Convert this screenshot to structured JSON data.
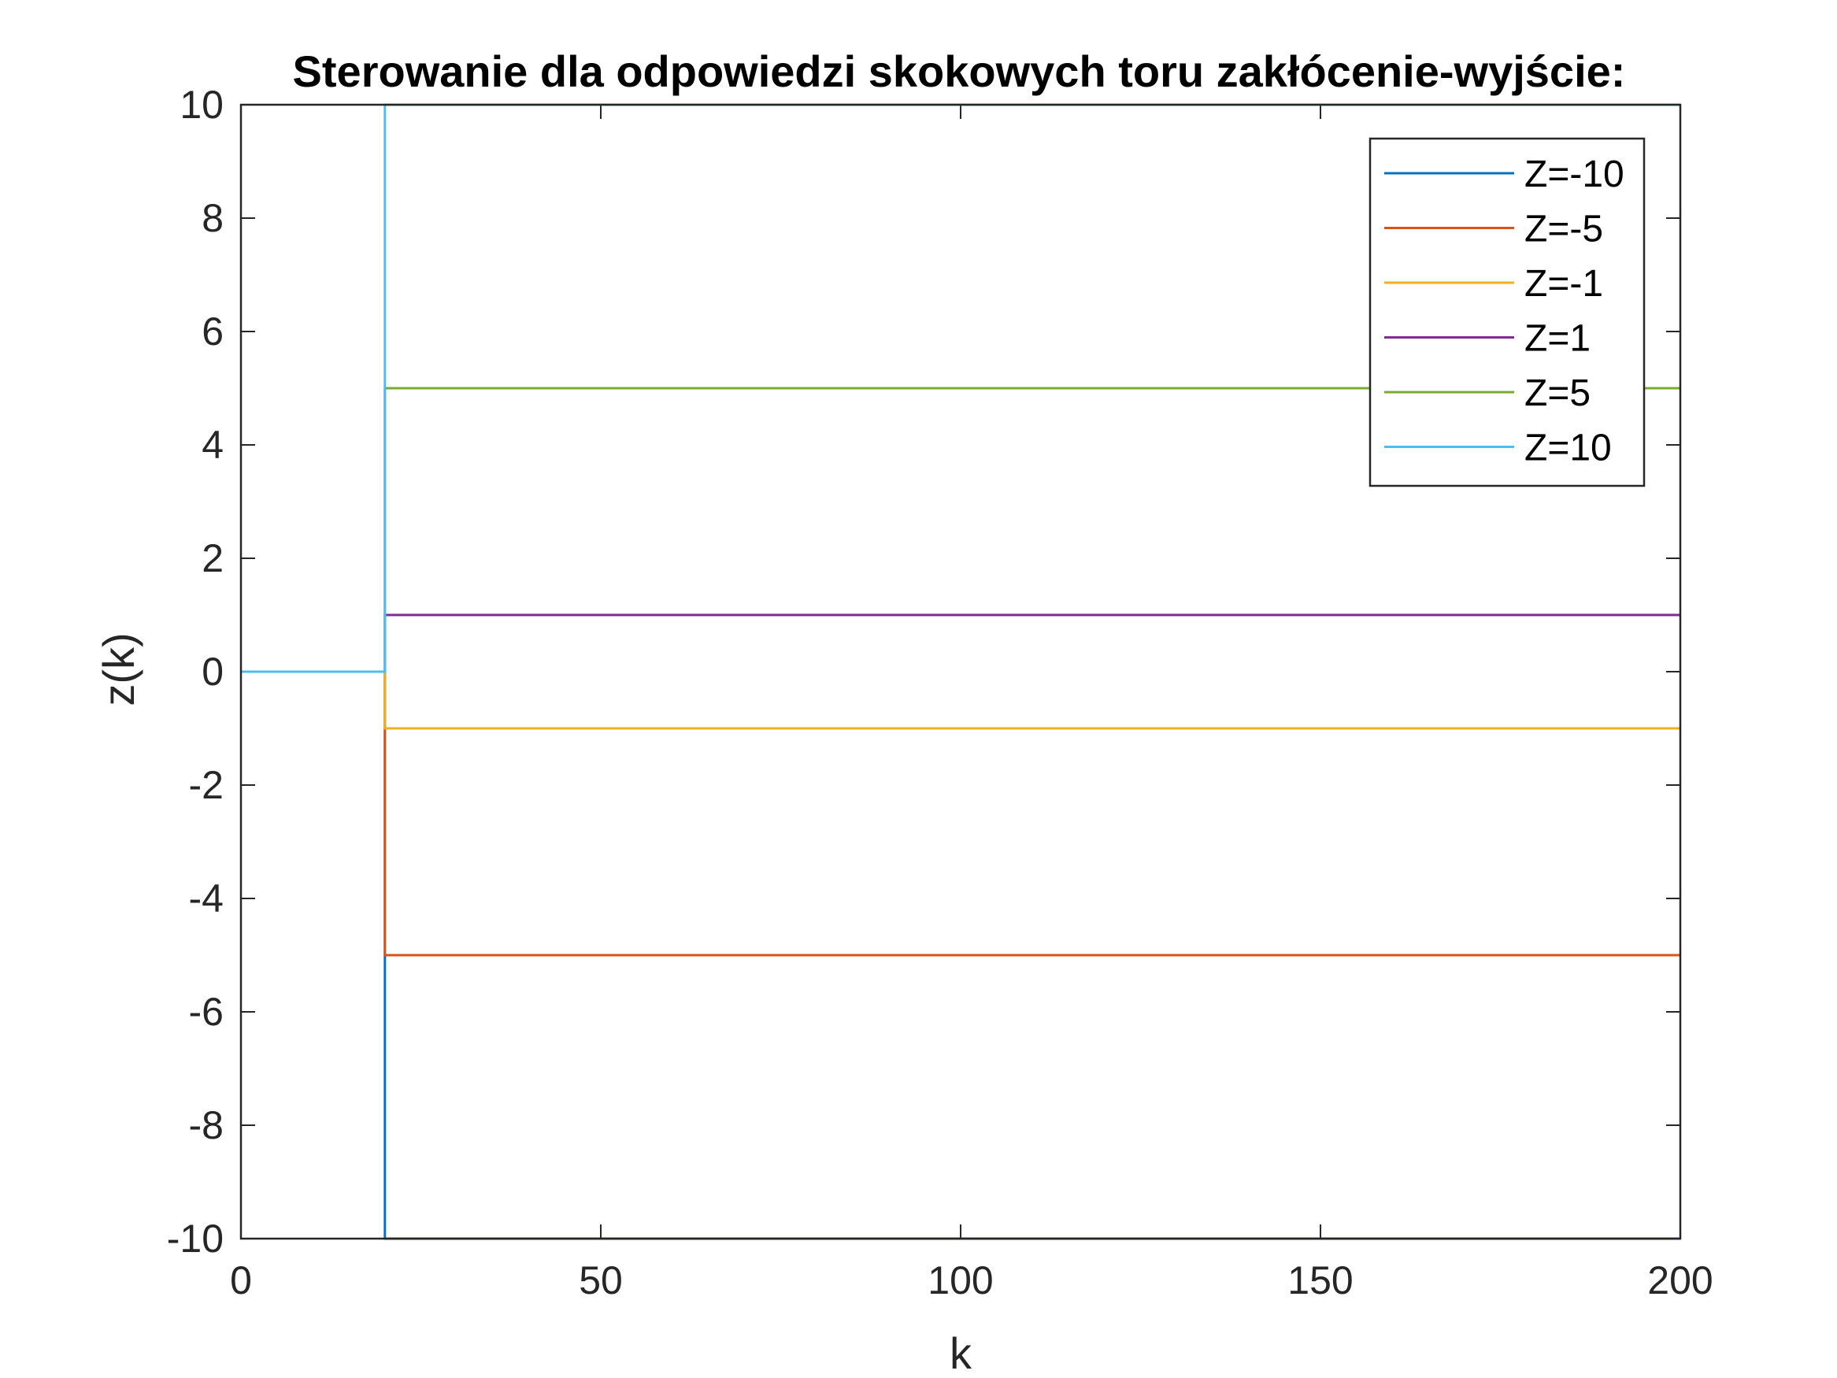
{
  "chart_data": {
    "type": "line",
    "title": "Sterowanie dla odpowiedzi skokowych toru zakłócenie-wyjście:",
    "xlabel": "k",
    "ylabel": "z(k)",
    "xlim": [
      0,
      200
    ],
    "ylim": [
      -10,
      10
    ],
    "xticks": [
      "0",
      "50",
      "100",
      "150",
      "200"
    ],
    "yticks": [
      "-10",
      "-8",
      "-6",
      "-4",
      "-2",
      "0",
      "2",
      "4",
      "6",
      "8",
      "10"
    ],
    "grid": false,
    "legend_position": "top-right",
    "step_at_k": 20,
    "x": [
      0,
      20,
      20,
      200
    ],
    "series": [
      {
        "name": "Z=-10",
        "color": "#0072BD",
        "values": [
          0,
          0,
          -10,
          -10
        ]
      },
      {
        "name": "Z=-5",
        "color": "#D95319",
        "values": [
          0,
          0,
          -5,
          -5
        ]
      },
      {
        "name": "Z=-1",
        "color": "#EDB120",
        "values": [
          0,
          0,
          -1,
          -1
        ]
      },
      {
        "name": "Z=1",
        "color": "#7E2F8E",
        "values": [
          0,
          0,
          1,
          1
        ]
      },
      {
        "name": "Z=5",
        "color": "#77AC30",
        "values": [
          0,
          0,
          5,
          5
        ]
      },
      {
        "name": "Z=10",
        "color": "#4DBEEE",
        "values": [
          0,
          0,
          10,
          10
        ]
      }
    ]
  }
}
